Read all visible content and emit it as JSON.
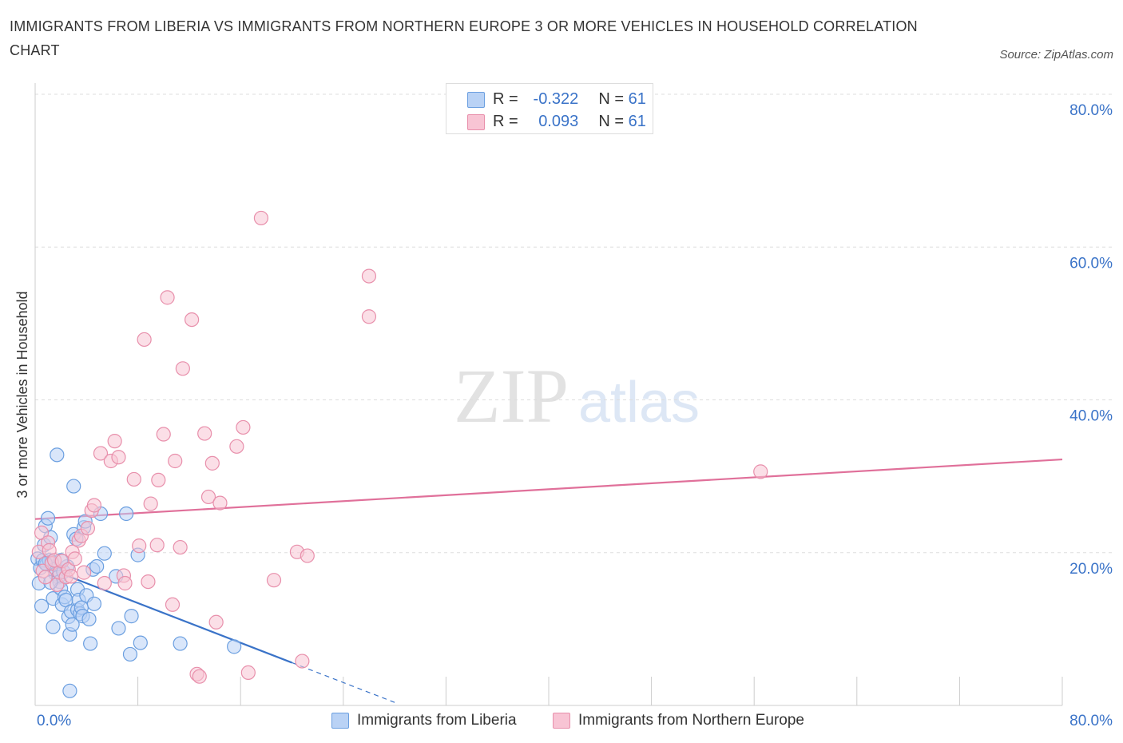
{
  "title": "IMMIGRANTS FROM LIBERIA VS IMMIGRANTS FROM NORTHERN EUROPE 3 OR MORE VEHICLES IN HOUSEHOLD CORRELATION CHART",
  "source": "Source: ZipAtlas.com",
  "watermark": {
    "zip": "ZIP",
    "atlas": "atlas"
  },
  "stats_legend": [
    {
      "r_label": "R =",
      "r_value": "-0.322",
      "n_label": "N =",
      "n_value": "61"
    },
    {
      "r_label": "R =",
      "r_value": "0.093",
      "n_label": "N =",
      "n_value": "61"
    }
  ],
  "series_legend": [
    "Immigrants from Liberia",
    "Immigrants from Northern Europe"
  ],
  "colors": {
    "liberia_fill": "#b9d2f5",
    "liberia_stroke": "#6b9fe0",
    "liberia_line": "#3a73c8",
    "ne_fill": "#f8c4d4",
    "ne_stroke": "#e88fab",
    "ne_line": "#e0709a",
    "accent_text": "#3a73c8"
  },
  "chart_data": {
    "type": "scatter",
    "title": "IMMIGRANTS FROM LIBERIA VS IMMIGRANTS FROM NORTHERN EUROPE 3 OR MORE VEHICLES IN HOUSEHOLD CORRELATION CHART",
    "xlabel": "",
    "ylabel": "3 or more Vehicles in Household",
    "xlim": [
      0,
      80
    ],
    "ylim": [
      0,
      80
    ],
    "x_tick_labels": [
      "0.0%",
      "80.0%"
    ],
    "y_ticks": [
      20,
      40,
      60,
      80
    ],
    "y_tick_labels": [
      "20.0%",
      "40.0%",
      "60.0%",
      "80.0%"
    ],
    "grid": true,
    "legend": "top-center",
    "series": [
      {
        "name": "Immigrants from Liberia",
        "R": -0.322,
        "N": 61,
        "trendline": {
          "x": [
            0,
            20
          ],
          "y": [
            18.6,
            5.6
          ],
          "dashed_to": {
            "x": 28,
            "y": 0.4
          }
        },
        "points": [
          {
            "x": 0.2,
            "y": 19.2
          },
          {
            "x": 0.3,
            "y": 16.0
          },
          {
            "x": 0.4,
            "y": 18.0
          },
          {
            "x": 0.5,
            "y": 13.0
          },
          {
            "x": 0.6,
            "y": 19.0
          },
          {
            "x": 0.7,
            "y": 21.0
          },
          {
            "x": 0.8,
            "y": 23.5
          },
          {
            "x": 0.9,
            "y": 18.5
          },
          {
            "x": 1.0,
            "y": 24.5
          },
          {
            "x": 1.1,
            "y": 19.0
          },
          {
            "x": 1.2,
            "y": 22.0
          },
          {
            "x": 1.3,
            "y": 18.8
          },
          {
            "x": 1.4,
            "y": 14.0
          },
          {
            "x": 1.4,
            "y": 10.3
          },
          {
            "x": 1.5,
            "y": 17.8
          },
          {
            "x": 1.6,
            "y": 17.2
          },
          {
            "x": 1.7,
            "y": 32.8
          },
          {
            "x": 1.8,
            "y": 16.8
          },
          {
            "x": 1.9,
            "y": 16.2
          },
          {
            "x": 2.0,
            "y": 15.3
          },
          {
            "x": 2.1,
            "y": 13.2
          },
          {
            "x": 2.2,
            "y": 17.5
          },
          {
            "x": 2.3,
            "y": 14.2
          },
          {
            "x": 2.4,
            "y": 13.8
          },
          {
            "x": 2.5,
            "y": 18.2
          },
          {
            "x": 2.6,
            "y": 11.6
          },
          {
            "x": 2.7,
            "y": 9.3
          },
          {
            "x": 2.7,
            "y": 1.9
          },
          {
            "x": 2.8,
            "y": 12.3
          },
          {
            "x": 2.9,
            "y": 10.6
          },
          {
            "x": 3.0,
            "y": 28.7
          },
          {
            "x": 3.0,
            "y": 22.4
          },
          {
            "x": 3.2,
            "y": 21.8
          },
          {
            "x": 3.3,
            "y": 12.5
          },
          {
            "x": 3.3,
            "y": 15.2
          },
          {
            "x": 3.4,
            "y": 13.8
          },
          {
            "x": 3.5,
            "y": 12.0
          },
          {
            "x": 3.6,
            "y": 12.8
          },
          {
            "x": 3.7,
            "y": 11.7
          },
          {
            "x": 3.8,
            "y": 23.3
          },
          {
            "x": 3.9,
            "y": 24.1
          },
          {
            "x": 4.0,
            "y": 14.4
          },
          {
            "x": 4.2,
            "y": 11.3
          },
          {
            "x": 4.3,
            "y": 8.1
          },
          {
            "x": 4.5,
            "y": 17.8
          },
          {
            "x": 4.6,
            "y": 13.3
          },
          {
            "x": 4.8,
            "y": 18.2
          },
          {
            "x": 5.1,
            "y": 25.1
          },
          {
            "x": 5.4,
            "y": 19.9
          },
          {
            "x": 6.3,
            "y": 16.9
          },
          {
            "x": 6.5,
            "y": 10.1
          },
          {
            "x": 7.4,
            "y": 6.7
          },
          {
            "x": 7.5,
            "y": 11.7
          },
          {
            "x": 8.0,
            "y": 19.7
          },
          {
            "x": 8.2,
            "y": 8.2
          },
          {
            "x": 7.1,
            "y": 25.1
          },
          {
            "x": 11.3,
            "y": 8.1
          },
          {
            "x": 15.5,
            "y": 7.7
          },
          {
            "x": 1.2,
            "y": 16.1
          },
          {
            "x": 2.0,
            "y": 19.0
          },
          {
            "x": 0.8,
            "y": 18.6
          }
        ]
      },
      {
        "name": "Immigrants from Northern Europe",
        "R": 0.093,
        "N": 61,
        "trendline": {
          "x": [
            0,
            80
          ],
          "y": [
            24.4,
            32.2
          ]
        },
        "points": [
          {
            "x": 0.3,
            "y": 20.1
          },
          {
            "x": 0.5,
            "y": 22.6
          },
          {
            "x": 0.6,
            "y": 17.6
          },
          {
            "x": 0.8,
            "y": 16.8
          },
          {
            "x": 1.0,
            "y": 21.3
          },
          {
            "x": 1.1,
            "y": 20.3
          },
          {
            "x": 1.3,
            "y": 18.6
          },
          {
            "x": 1.5,
            "y": 19.0
          },
          {
            "x": 1.7,
            "y": 15.8
          },
          {
            "x": 1.9,
            "y": 17.4
          },
          {
            "x": 2.1,
            "y": 18.9
          },
          {
            "x": 2.4,
            "y": 16.8
          },
          {
            "x": 2.6,
            "y": 17.8
          },
          {
            "x": 2.8,
            "y": 16.9
          },
          {
            "x": 2.9,
            "y": 20.1
          },
          {
            "x": 3.1,
            "y": 19.2
          },
          {
            "x": 3.4,
            "y": 21.6
          },
          {
            "x": 3.6,
            "y": 22.2
          },
          {
            "x": 3.8,
            "y": 17.4
          },
          {
            "x": 4.1,
            "y": 23.2
          },
          {
            "x": 4.4,
            "y": 25.5
          },
          {
            "x": 4.6,
            "y": 26.2
          },
          {
            "x": 5.1,
            "y": 33.0
          },
          {
            "x": 5.4,
            "y": 16.0
          },
          {
            "x": 5.9,
            "y": 32.0
          },
          {
            "x": 6.2,
            "y": 34.6
          },
          {
            "x": 6.5,
            "y": 32.5
          },
          {
            "x": 6.9,
            "y": 17.0
          },
          {
            "x": 7.0,
            "y": 16.0
          },
          {
            "x": 7.7,
            "y": 29.6
          },
          {
            "x": 8.1,
            "y": 20.9
          },
          {
            "x": 8.5,
            "y": 47.9
          },
          {
            "x": 8.8,
            "y": 16.2
          },
          {
            "x": 9.0,
            "y": 26.4
          },
          {
            "x": 9.5,
            "y": 21.0
          },
          {
            "x": 9.6,
            "y": 29.5
          },
          {
            "x": 10.0,
            "y": 35.5
          },
          {
            "x": 10.3,
            "y": 53.4
          },
          {
            "x": 10.7,
            "y": 13.2
          },
          {
            "x": 10.9,
            "y": 32.0
          },
          {
            "x": 11.3,
            "y": 20.7
          },
          {
            "x": 11.5,
            "y": 44.1
          },
          {
            "x": 12.2,
            "y": 50.5
          },
          {
            "x": 12.6,
            "y": 4.1
          },
          {
            "x": 12.8,
            "y": 3.8
          },
          {
            "x": 13.2,
            "y": 35.6
          },
          {
            "x": 13.5,
            "y": 27.3
          },
          {
            "x": 13.8,
            "y": 31.7
          },
          {
            "x": 14.1,
            "y": 10.9
          },
          {
            "x": 14.4,
            "y": 26.5
          },
          {
            "x": 15.7,
            "y": 33.9
          },
          {
            "x": 16.2,
            "y": 36.4
          },
          {
            "x": 16.6,
            "y": 4.3
          },
          {
            "x": 17.6,
            "y": 63.8
          },
          {
            "x": 18.6,
            "y": 16.4
          },
          {
            "x": 20.4,
            "y": 20.1
          },
          {
            "x": 21.2,
            "y": 19.6
          },
          {
            "x": 20.8,
            "y": 5.8
          },
          {
            "x": 26.0,
            "y": 56.2
          },
          {
            "x": 26.0,
            "y": 50.9
          },
          {
            "x": 56.5,
            "y": 30.6
          }
        ]
      }
    ]
  }
}
